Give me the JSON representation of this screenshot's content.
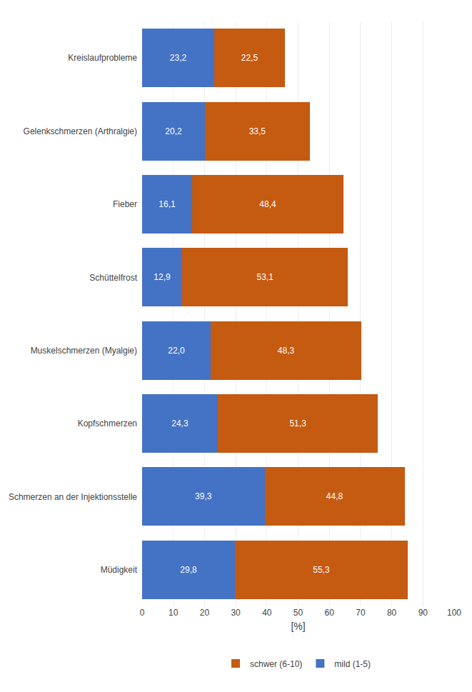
{
  "chart_data": {
    "type": "bar",
    "orientation": "horizontal",
    "stacked": true,
    "categories": [
      "Kreislaufprobleme",
      "Gelenkschmerzen (Arthralgie)",
      "Fieber",
      "Schüttelfrost",
      "Muskelschmerzen (Myalgie)",
      "Kopfschmerzen",
      "Schmerzen an der Injektionsstelle",
      "Müdigkeit"
    ],
    "series": [
      {
        "name": "mild (1-5)",
        "color": "#4472C4",
        "values": [
          23.2,
          20.2,
          16.1,
          12.9,
          22.0,
          24.3,
          39.3,
          29.8
        ],
        "value_labels": [
          "23,2",
          "20,2",
          "16,1",
          "12,9",
          "22,0",
          "24,3",
          "39,3",
          "29,8"
        ]
      },
      {
        "name": "schwer (6-10)",
        "color": "#C55A11",
        "values": [
          22.5,
          33.5,
          48.4,
          53.1,
          48.3,
          51.3,
          44.8,
          55.3
        ],
        "value_labels": [
          "22,5",
          "33,5",
          "48,4",
          "53,1",
          "48,3",
          "51,3",
          "44,8",
          "55,3"
        ]
      }
    ],
    "xlabel": "[%]",
    "xlim": [
      0,
      100
    ],
    "xticks": [
      0,
      10,
      20,
      30,
      40,
      50,
      60,
      70,
      80,
      90,
      100
    ],
    "grid": true,
    "legend": "bottom",
    "data_labels": true
  }
}
